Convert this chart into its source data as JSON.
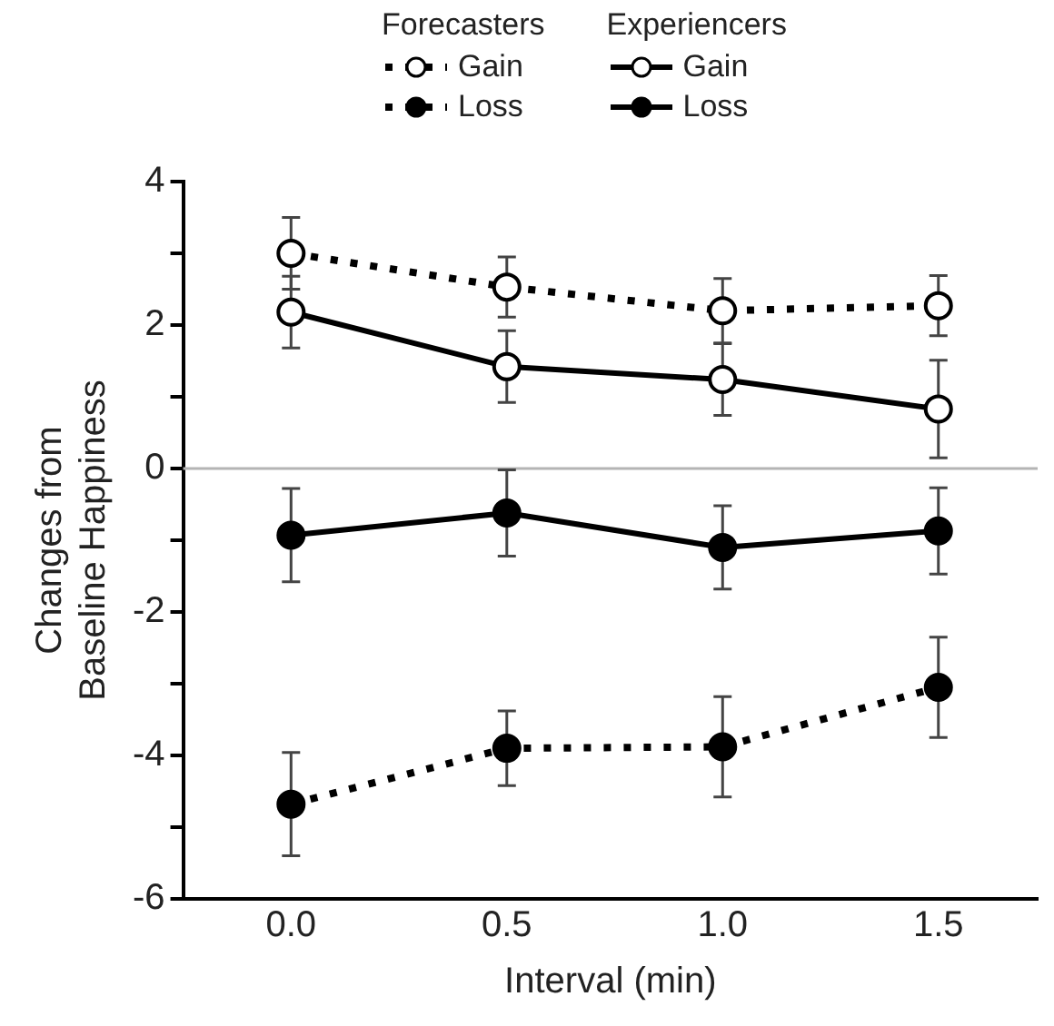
{
  "chart_data": {
    "type": "line",
    "xlabel": "Interval (min)",
    "ylabel": "Changes from\nBaseline Happiness",
    "x": [
      0,
      0.5,
      1,
      1.5
    ],
    "xlim": [
      -0.25,
      1.73
    ],
    "xticks": [
      {
        "value": 0,
        "label": "0.0"
      },
      {
        "value": 0.5,
        "label": "0.5"
      },
      {
        "value": 1,
        "label": "1.0"
      },
      {
        "value": 1.5,
        "label": "1.5"
      }
    ],
    "ylim": [
      -6,
      4
    ],
    "yticks": [
      -6,
      {
        "value": -5,
        "label": null
      },
      -4,
      {
        "value": -3,
        "label": null
      },
      -2,
      {
        "value": -1,
        "label": null
      },
      0,
      {
        "value": 1,
        "label": null
      },
      2,
      {
        "value": 3,
        "label": null
      },
      4
    ],
    "annotations": [
      "Forecasters",
      "Experiencers"
    ],
    "ref_lines": [
      {
        "axis": "y",
        "value": 0,
        "color": "#b4b4b4"
      }
    ],
    "legend": "top",
    "marker": "circle",
    "series": [
      {
        "name": "Gain",
        "color": "#ffffff",
        "line_style": "dotted",
        "values": [
          3.0,
          2.53,
          2.2,
          2.27
        ],
        "errors": [
          0.5,
          0.42,
          0.45,
          0.42
        ]
      },
      {
        "name": "Loss",
        "color": "#000000",
        "line_style": "dotted",
        "values": [
          -4.68,
          -3.9,
          -3.88,
          -3.05
        ],
        "errors": [
          0.72,
          0.52,
          0.7,
          0.7
        ]
      },
      {
        "name": "Gain",
        "color": "#ffffff",
        "line_style": "solid",
        "values": [
          2.18,
          1.42,
          1.24,
          0.83
        ],
        "errors": [
          0.5,
          0.5,
          0.5,
          0.68
        ]
      },
      {
        "name": "Loss",
        "color": "#000000",
        "line_style": "solid",
        "values": [
          -0.93,
          -0.62,
          -1.1,
          -0.87
        ],
        "errors": [
          0.65,
          0.6,
          0.58,
          0.6
        ]
      }
    ]
  }
}
